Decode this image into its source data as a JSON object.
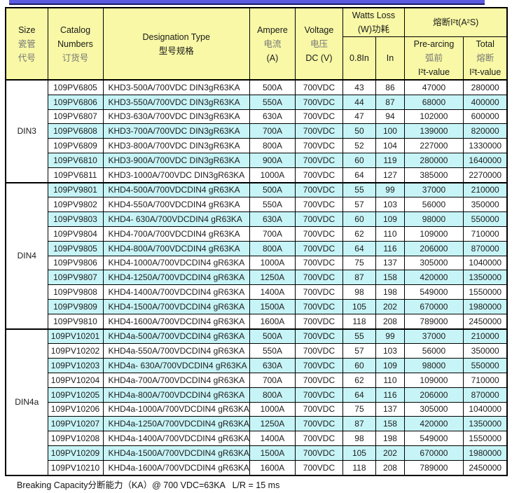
{
  "colors": {
    "header_bg": "#f8f8a6",
    "row_alt_bg": "#c7f4f7",
    "accent_bar": "#5b5be0",
    "accent_bar_edge": "#1b1b66",
    "border": "#000000"
  },
  "header": {
    "size": {
      "en": "Size",
      "cn1": "瓷管",
      "cn2": "代号"
    },
    "catalog": {
      "en1": "Catalog",
      "en2": "Numbers",
      "cn": "订货号"
    },
    "designation": {
      "en": "Designation Type",
      "cn": "型号规格"
    },
    "ampere": {
      "en": "Ampere",
      "cn": "电流",
      "unit": "(A)"
    },
    "voltage": {
      "en": "Voltage",
      "cn": "电压",
      "unit": "DC (V)"
    },
    "watts_loss": {
      "en": "Watts Loss",
      "cn": "(W)功耗",
      "sub_08in": "0.8In",
      "sub_in": "In"
    },
    "i2t": {
      "title": "熔断I²t(A²S)",
      "prearcing_en": "Pre-arcing",
      "prearcing_cn": "弧前",
      "prearcing_sub": "I²t-value",
      "total_en": "Total",
      "total_cn": "熔断",
      "total_sub": "I²t-value"
    }
  },
  "table": {
    "groups": [
      {
        "size": "DIN3",
        "rows": [
          [
            "109PV6805",
            "KHD3-500A/700VDC DIN3gR63KA",
            "500A",
            "700VDC",
            "43",
            "86",
            "47000",
            "280000"
          ],
          [
            "109PV6806",
            "KHD3-550A/700VDC DIN3gR63KA",
            "550A",
            "700VDC",
            "44",
            "87",
            "68000",
            "400000"
          ],
          [
            "109PV6807",
            "KHD3-630A/700VDC DIN3gR63KA",
            "630A",
            "700VDC",
            "47",
            "94",
            "102000",
            "600000"
          ],
          [
            "109PV6808",
            "KHD3-700A/700VDC DIN3gR63KA",
            "700A",
            "700VDC",
            "50",
            "100",
            "139000",
            "820000"
          ],
          [
            "109PV6809",
            "KHD3-800A/700VDC DIN3gR63KA",
            "800A",
            "700VDC",
            "52",
            "104",
            "227000",
            "1330000"
          ],
          [
            "109PV6810",
            "KHD3-900A/700VDC DIN3gR63KA",
            "900A",
            "700VDC",
            "60",
            "119",
            "280000",
            "1640000"
          ],
          [
            "109PV6811",
            "KHD3-1000A/700VDC DIN3gR63KA",
            "1000A",
            "700VDC",
            "64",
            "127",
            "385000",
            "2270000"
          ]
        ]
      },
      {
        "size": "DIN4",
        "rows": [
          [
            "109PV9801",
            "KHD4-500A/700VDCDIN4 gR63KA",
            "500A",
            "700VDC",
            "55",
            "99",
            "37000",
            "210000"
          ],
          [
            "109PV9802",
            "KHD4-550A/700VDCDIN4 gR63KA",
            "550A",
            "700VDC",
            "57",
            "103",
            "56000",
            "350000"
          ],
          [
            "109PV9803",
            "KHD4- 630A/700VDCDIN4 gR63KA",
            "630A",
            "700VDC",
            "60",
            "109",
            "98000",
            "550000"
          ],
          [
            "109PV9804",
            "KHD4-700A/700VDCDIN4 gR63KA",
            "700A",
            "700VDC",
            "62",
            "110",
            "109000",
            "710000"
          ],
          [
            "109PV9805",
            "KHD4-800A/700VDCDIN4 gR63KA",
            "800A",
            "700VDC",
            "64",
            "116",
            "206000",
            "870000"
          ],
          [
            "109PV9806",
            "KHD4-1000A/700VDCDIN4 gR63KA",
            "1000A",
            "700VDC",
            "75",
            "137",
            "305000",
            "1040000"
          ],
          [
            "109PV9807",
            "KHD4-1250A/700VDCDIN4 gR63KA",
            "1250A",
            "700VDC",
            "87",
            "158",
            "420000",
            "1350000"
          ],
          [
            "109PV9808",
            "KHD4-1400A/700VDCDIN4 gR63KA",
            "1400A",
            "700VDC",
            "98",
            "198",
            "549000",
            "1550000"
          ],
          [
            "109PV9809",
            "KHD4-1500A/700VDCDIN4 gR63KA",
            "1500A",
            "700VDC",
            "105",
            "202",
            "670000",
            "1980000"
          ],
          [
            "109PV9810",
            "KHD4-1600A/700VDCDIN4 gR63KA",
            "1600A",
            "700VDC",
            "118",
            "208",
            "789000",
            "2450000"
          ]
        ]
      },
      {
        "size": "DIN4a",
        "rows": [
          [
            "109PV10201",
            "KHD4a-500A/700VDCDIN4 gR63KA",
            "500A",
            "700VDC",
            "55",
            "99",
            "37000",
            "210000"
          ],
          [
            "109PV10202",
            "KHD4a-550A/700VDCDIN4 gR63KA",
            "550A",
            "700VDC",
            "57",
            "103",
            "56000",
            "350000"
          ],
          [
            "109PV10203",
            "KHD4a- 630A/700VDCDIN4 gR63KA",
            "630A",
            "700VDC",
            "60",
            "109",
            "98000",
            "550000"
          ],
          [
            "109PV10204",
            "KHD4a-700A/700VDCDIN4 gR63KA",
            "700A",
            "700VDC",
            "62",
            "110",
            "109000",
            "710000"
          ],
          [
            "109PV10205",
            "KHD4a-800A/700VDCDIN4 gR63KA",
            "800A",
            "700VDC",
            "64",
            "116",
            "206000",
            "870000"
          ],
          [
            "109PV10206",
            "KHD4a-1000A/700VDCDIN4 gR63KA",
            "1000A",
            "700VDC",
            "75",
            "137",
            "305000",
            "1040000"
          ],
          [
            "109PV10207",
            "KHD4a-1250A/700VDCDIN4 gR63KA",
            "1250A",
            "700VDC",
            "87",
            "158",
            "420000",
            "1350000"
          ],
          [
            "109PV10208",
            "KHD4a-1400A/700VDCDIN4 gR63KA",
            "1400A",
            "700VDC",
            "98",
            "198",
            "549000",
            "1550000"
          ],
          [
            "109PV10209",
            "KHD4a-1500A/700VDCDIN4 gR63KA",
            "1500A",
            "700VDC",
            "105",
            "202",
            "670000",
            "1980000"
          ],
          [
            "109PV10210",
            "KHD4a-1600A/700VDCDIN4 gR63KA",
            "1600A",
            "700VDC",
            "118",
            "208",
            "789000",
            "2450000"
          ]
        ]
      }
    ],
    "column_data_names": [
      "catalog-number-cell",
      "designation-type-cell",
      "ampere-cell",
      "voltage-cell",
      "watts-loss-0-8in-cell",
      "watts-loss-in-cell",
      "prearcing-i2t-cell",
      "total-i2t-cell"
    ]
  },
  "footer": {
    "text": "Breaking Capacity分断能力（KA）@ 700 VDC=63KA   L/R = 15 ms"
  }
}
